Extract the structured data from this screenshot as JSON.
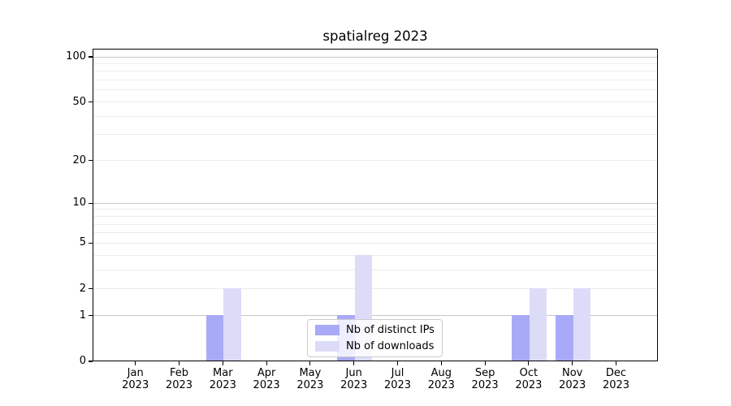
{
  "title": "spatialreg 2023",
  "colors": {
    "background": "#ffffff",
    "spine": "#000000",
    "major_grid": "#c6c6c6",
    "minor_grid": "#ececec",
    "series_ips": "#a9aaf7",
    "series_downloads": "#dcdcf9",
    "legend_border": "#cccccc"
  },
  "chart_data": {
    "type": "bar",
    "title": "spatialreg 2023",
    "xlabel": "",
    "ylabel": "",
    "categories": [
      "Jan 2023",
      "Feb 2023",
      "Mar 2023",
      "Apr 2023",
      "May 2023",
      "Jun 2023",
      "Jul 2023",
      "Aug 2023",
      "Sep 2023",
      "Oct 2023",
      "Nov 2023",
      "Dec 2023"
    ],
    "series": [
      {
        "name": "Nb of distinct IPs",
        "color": "#a9aaf7",
        "values": [
          0,
          0,
          1,
          0,
          0,
          1,
          0,
          0,
          0,
          1,
          1,
          0
        ]
      },
      {
        "name": "Nb of downloads",
        "color": "#dcdcf9",
        "values": [
          0,
          0,
          2,
          0,
          0,
          4,
          0,
          0,
          0,
          2,
          2,
          0
        ]
      }
    ],
    "yscale": "log1p",
    "ylim": [
      0,
      113
    ],
    "yticks": [
      0,
      1,
      2,
      5,
      10,
      20,
      50,
      100
    ],
    "major_gridlines": [
      1,
      10,
      100
    ],
    "minor_gridlines": [
      2,
      3,
      4,
      5,
      6,
      7,
      8,
      9,
      20,
      30,
      40,
      50,
      60,
      70,
      80,
      90
    ],
    "grid": true,
    "legend_position": "lower center"
  }
}
